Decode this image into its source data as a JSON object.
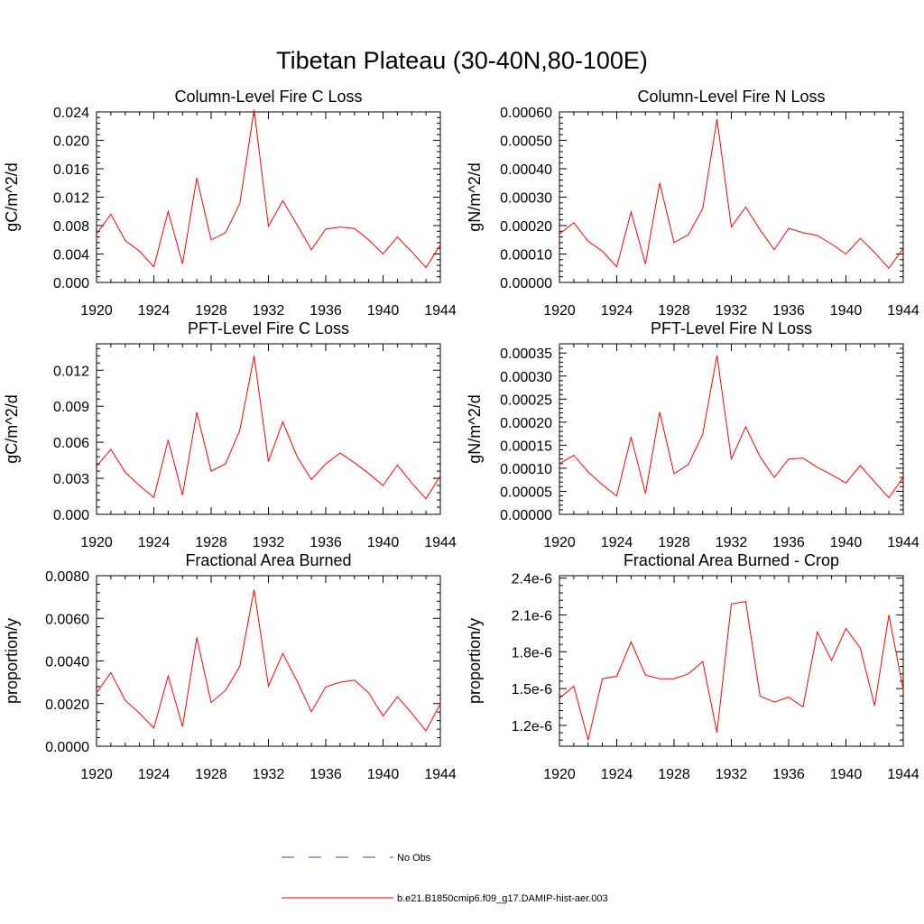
{
  "figure": {
    "title": "Tibetan Plateau (30-40N,80-100E)",
    "line_color": "#ff0000",
    "obs_color": "#3f3fbf"
  },
  "legend": {
    "entries": [
      {
        "label": "No Obs",
        "style": "dashed",
        "color": "#3f3fbf"
      },
      {
        "label": "b.e21.B1850cmip6.f09_g17.DAMIP-hist-aer.003",
        "style": "solid",
        "color": "#ff0000"
      }
    ]
  },
  "chart_data": [
    {
      "type": "line",
      "title": "Column-Level Fire C Loss",
      "ylabel": "gC/m^2/d",
      "xlim": [
        1920,
        1944
      ],
      "ylim": [
        0,
        0.024
      ],
      "xticks": [
        "1920",
        "1924",
        "1928",
        "1932",
        "1936",
        "1940",
        "1944"
      ],
      "yticks": [
        "0.000",
        "0.004",
        "0.008",
        "0.012",
        "0.016",
        "0.020",
        "0.024"
      ],
      "x": [
        1920,
        1921,
        1922,
        1923,
        1924,
        1925,
        1926,
        1927,
        1928,
        1929,
        1930,
        1931,
        1932,
        1933,
        1934,
        1935,
        1936,
        1937,
        1938,
        1939,
        1940,
        1941,
        1942,
        1943,
        1944
      ],
      "series": [
        {
          "values": [
            0.0068,
            0.0096,
            0.0059,
            0.0044,
            0.0022,
            0.01,
            0.0026,
            0.0147,
            0.006,
            0.007,
            0.0111,
            0.0243,
            0.0079,
            0.0115,
            0.0081,
            0.0046,
            0.0075,
            0.0078,
            0.0076,
            0.006,
            0.004,
            0.0064,
            0.0043,
            0.0021,
            0.0053
          ]
        }
      ]
    },
    {
      "type": "line",
      "title": "Column-Level Fire N Loss",
      "ylabel": "gN/m^2/d",
      "xlim": [
        1920,
        1944
      ],
      "ylim": [
        0,
        0.0006
      ],
      "xticks": [
        "1920",
        "1924",
        "1928",
        "1932",
        "1936",
        "1940",
        "1944"
      ],
      "yticks": [
        "0.00000",
        "0.00010",
        "0.00020",
        "0.00030",
        "0.00040",
        "0.00050",
        "0.00060"
      ],
      "x": [
        1920,
        1921,
        1922,
        1923,
        1924,
        1925,
        1926,
        1927,
        1928,
        1929,
        1930,
        1931,
        1932,
        1933,
        1934,
        1935,
        1936,
        1937,
        1938,
        1939,
        1940,
        1941,
        1942,
        1943,
        1944
      ],
      "series": [
        {
          "values": [
            0.00017,
            0.00021,
            0.000145,
            0.00011,
            5.5e-05,
            0.000248,
            6.5e-05,
            0.00035,
            0.00014,
            0.000168,
            0.00026,
            0.000575,
            0.000195,
            0.000265,
            0.000185,
            0.000115,
            0.00019,
            0.000175,
            0.000165,
            0.000135,
            0.0001,
            0.000155,
            0.000105,
            5e-05,
            0.00012
          ]
        }
      ]
    },
    {
      "type": "line",
      "title": "PFT-Level Fire C Loss",
      "ylabel": "gC/m^2/d",
      "xlim": [
        1920,
        1944
      ],
      "ylim": [
        0,
        0.0142
      ],
      "xticks": [
        "1920",
        "1924",
        "1928",
        "1932",
        "1936",
        "1940",
        "1944"
      ],
      "yticks": [
        "0.000",
        "0.003",
        "0.006",
        "0.009",
        "0.012"
      ],
      "x": [
        1920,
        1921,
        1922,
        1923,
        1924,
        1925,
        1926,
        1927,
        1928,
        1929,
        1930,
        1931,
        1932,
        1933,
        1934,
        1935,
        1936,
        1937,
        1938,
        1939,
        1940,
        1941,
        1942,
        1943,
        1944
      ],
      "series": [
        {
          "values": [
            0.004,
            0.0054,
            0.0035,
            0.0024,
            0.0014,
            0.0062,
            0.0016,
            0.0085,
            0.0036,
            0.0042,
            0.007,
            0.0132,
            0.0044,
            0.0077,
            0.0048,
            0.0029,
            0.0042,
            0.0051,
            0.0043,
            0.0034,
            0.0024,
            0.0041,
            0.0026,
            0.0013,
            0.0032
          ]
        }
      ]
    },
    {
      "type": "line",
      "title": "PFT-Level Fire N Loss",
      "ylabel": "gN/m^2/d",
      "xlim": [
        1920,
        1944
      ],
      "ylim": [
        0,
        0.00037
      ],
      "xticks": [
        "1920",
        "1924",
        "1928",
        "1932",
        "1936",
        "1940",
        "1944"
      ],
      "yticks": [
        "0.00000",
        "0.00005",
        "0.00010",
        "0.00015",
        "0.00020",
        "0.00025",
        "0.00030",
        "0.00035"
      ],
      "x": [
        1920,
        1921,
        1922,
        1923,
        1924,
        1925,
        1926,
        1927,
        1928,
        1929,
        1930,
        1931,
        1932,
        1933,
        1934,
        1935,
        1936,
        1937,
        1938,
        1939,
        1940,
        1941,
        1942,
        1943,
        1944
      ],
      "series": [
        {
          "values": [
            0.00011,
            0.000128,
            9.2e-05,
            6.4e-05,
            4e-05,
            0.000168,
            4.5e-05,
            0.000222,
            8.8e-05,
            0.000108,
            0.000174,
            0.000345,
            0.00012,
            0.00019,
            0.000125,
            8e-05,
            0.00012,
            0.000122,
            0.000102,
            8.6e-05,
            6.8e-05,
            0.000106,
            7e-05,
            3.6e-05,
            8e-05
          ]
        }
      ]
    },
    {
      "type": "line",
      "title": "Fractional Area Burned",
      "ylabel": "proportion/y",
      "xlim": [
        1920,
        1944
      ],
      "ylim": [
        0,
        0.008
      ],
      "xticks": [
        "1920",
        "1924",
        "1928",
        "1932",
        "1936",
        "1940",
        "1944"
      ],
      "yticks": [
        "0.0000",
        "0.0020",
        "0.0040",
        "0.0060",
        "0.0080"
      ],
      "x": [
        1920,
        1921,
        1922,
        1923,
        1924,
        1925,
        1926,
        1927,
        1928,
        1929,
        1930,
        1931,
        1932,
        1933,
        1934,
        1935,
        1936,
        1937,
        1938,
        1939,
        1940,
        1941,
        1942,
        1943,
        1944
      ],
      "series": [
        {
          "values": [
            0.0025,
            0.00345,
            0.00215,
            0.00155,
            0.00085,
            0.0033,
            0.00092,
            0.0051,
            0.00205,
            0.00262,
            0.00375,
            0.00735,
            0.00282,
            0.00435,
            0.00305,
            0.00162,
            0.00278,
            0.003,
            0.0031,
            0.0025,
            0.00142,
            0.00232,
            0.00155,
            0.00072,
            0.002
          ]
        }
      ]
    },
    {
      "type": "line",
      "title": "Fractional Area Burned - Crop",
      "ylabel": "proportion/y",
      "xlim": [
        1920,
        1944
      ],
      "ylim": [
        1.03e-06,
        2.42e-06
      ],
      "xticks": [
        "1920",
        "1924",
        "1928",
        "1932",
        "1936",
        "1940",
        "1944"
      ],
      "yticks": [
        "1.2e-6",
        "1.5e-6",
        "1.8e-6",
        "2.1e-6",
        "2.4e-6"
      ],
      "ytick_values": [
        1.2e-06,
        1.5e-06,
        1.8e-06,
        2.1e-06,
        2.4e-06
      ],
      "x": [
        1920,
        1921,
        1922,
        1923,
        1924,
        1925,
        1926,
        1927,
        1928,
        1929,
        1930,
        1931,
        1932,
        1933,
        1934,
        1935,
        1936,
        1937,
        1938,
        1939,
        1940,
        1941,
        1942,
        1943,
        1944
      ],
      "series": [
        {
          "values": [
            1.42e-06,
            1.52e-06,
            1.08e-06,
            1.58e-06,
            1.6e-06,
            1.88e-06,
            1.61e-06,
            1.58e-06,
            1.58e-06,
            1.62e-06,
            1.72e-06,
            1.14e-06,
            2.19e-06,
            2.21e-06,
            1.44e-06,
            1.39e-06,
            1.43e-06,
            1.35e-06,
            1.96e-06,
            1.73e-06,
            1.99e-06,
            1.83e-06,
            1.36e-06,
            2.1e-06,
            1.49e-06
          ]
        }
      ]
    }
  ]
}
